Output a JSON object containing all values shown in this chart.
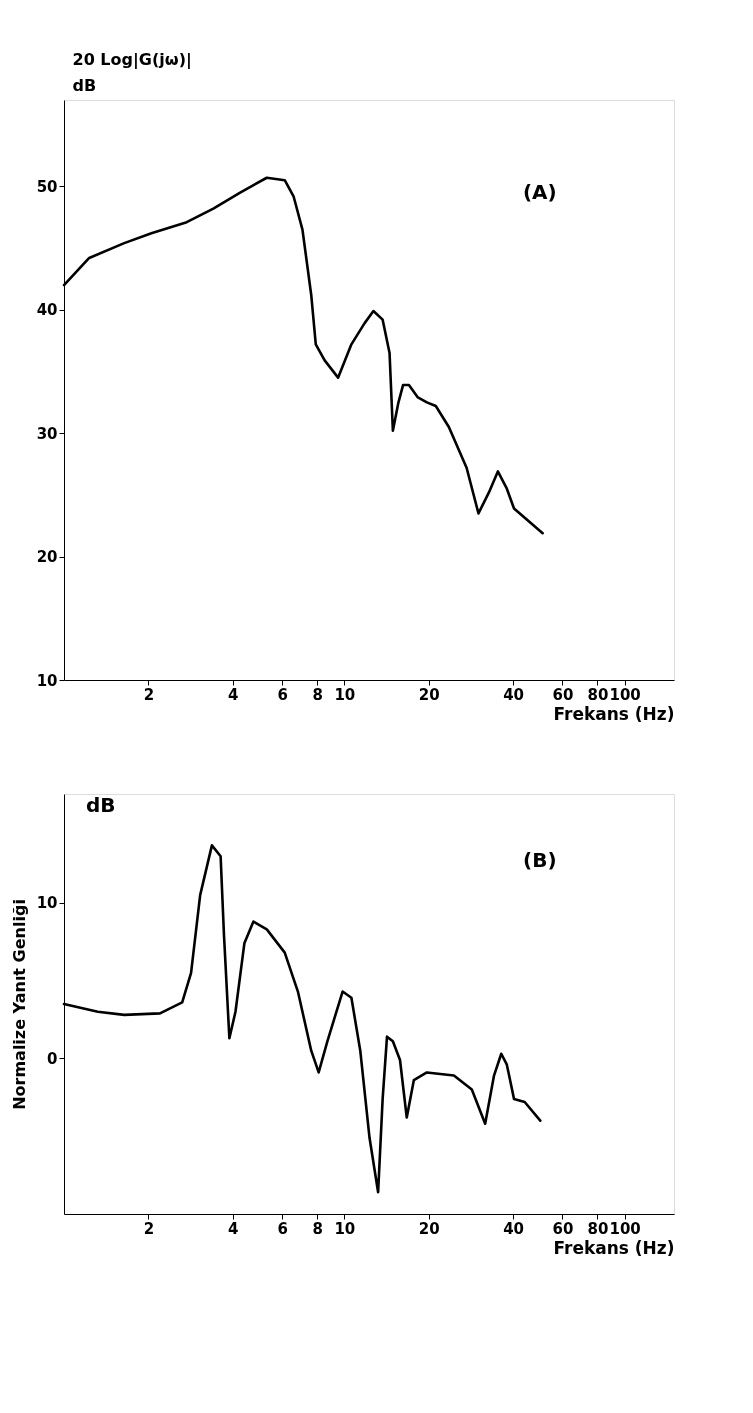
{
  "chart_data": [
    {
      "type": "line",
      "ylabel": "20 Log|G(jω)|\ndB",
      "xlabel": "Frekans (Hz)",
      "annotations": [
        "(A)"
      ],
      "log": "x",
      "grid": false,
      "marker": "none",
      "line_style": "solid",
      "xlim": [
        1,
        150
      ],
      "xticks": [
        2,
        4,
        6,
        8,
        10,
        20,
        40,
        60,
        80,
        100
      ],
      "ylim": [
        10,
        57
      ],
      "yticks": [
        10,
        20,
        30,
        40,
        50
      ],
      "series": [
        {
          "color": "#000000",
          "x": [
            1.0,
            1.23,
            1.64,
            2.05,
            2.74,
            3.41,
            4.25,
            5.29,
            6.13,
            6.59,
            7.09,
            7.62,
            7.91,
            8.51,
            9.5,
            10.6,
            11.8,
            12.7,
            13.7,
            14.5,
            14.9,
            15.6,
            16.2,
            17.0,
            18.3,
            19.7,
            21.2,
            23.6,
            27.3,
            30.1,
            32.8,
            35.3,
            38.0,
            40.3,
            51
          ],
          "values": [
            42,
            44.2,
            45.4,
            46.2,
            47.1,
            48.2,
            49.5,
            50.7,
            50.5,
            49.2,
            46.5,
            41.2,
            37.2,
            35.9,
            34.5,
            37.2,
            38.9,
            39.9,
            39.2,
            36.5,
            30.2,
            32.5,
            33.9,
            33.9,
            32.9,
            32.5,
            32.2,
            30.5,
            27.2,
            23.5,
            25.2,
            26.9,
            25.5,
            23.9,
            21.9
          ]
        }
      ]
    },
    {
      "type": "line",
      "ylabel": "Normalize Yanıt Genliği",
      "xlabel": "Frekans (Hz)",
      "annotations": [
        "dB",
        "(B)"
      ],
      "log": "x",
      "grid": false,
      "marker": "none",
      "line_style": "solid",
      "xlim": [
        1,
        150
      ],
      "xticks": [
        2,
        4,
        6,
        8,
        10,
        20,
        40,
        60,
        80,
        100
      ],
      "ylim": [
        -10,
        17
      ],
      "yticks": [
        0,
        10
      ],
      "series": [
        {
          "color": "#000000",
          "x": [
            1.0,
            1.32,
            1.64,
            2.2,
            2.64,
            2.84,
            3.06,
            3.37,
            3.62,
            3.72,
            3.89,
            4.09,
            4.4,
            4.74,
            5.29,
            6.13,
            6.83,
            7.62,
            8.1,
            8.7,
            9.86,
            10.6,
            11.4,
            12.3,
            13.2,
            13.7,
            14.2,
            14.9,
            15.8,
            16.7,
            17.7,
            19.7,
            24.6,
            28.5,
            31.8,
            34.2,
            36.3,
            38.0,
            40.3,
            44.0,
            50
          ],
          "values": [
            3.5,
            3.0,
            2.8,
            2.9,
            3.6,
            5.5,
            10.5,
            13.7,
            13,
            8,
            1.3,
            3,
            7.4,
            8.8,
            8.3,
            6.8,
            4.3,
            0.5,
            -0.9,
            1.1,
            4.3,
            3.9,
            0.5,
            -5.1,
            -8.6,
            -2.6,
            1.4,
            1.1,
            -0.1,
            -3.8,
            -1.4,
            -0.9,
            -1.1,
            -2,
            -4.2,
            -1.1,
            0.3,
            -0.4,
            -2.6,
            -2.8,
            -4
          ]
        }
      ]
    }
  ]
}
